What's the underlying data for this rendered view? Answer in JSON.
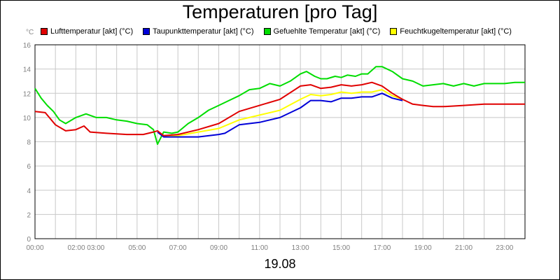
{
  "chart_data": {
    "type": "line",
    "title": "Temperaturen [pro Tag]",
    "date_label": "19.08",
    "y_unit": "°C",
    "ylim": [
      0,
      16
    ],
    "y_ticks": [
      "0",
      "2",
      "4",
      "6",
      "8",
      "10",
      "12",
      "14",
      "16"
    ],
    "xlim": [
      0,
      24
    ],
    "x_ticks": [
      {
        "h": 0,
        "label": "00:00"
      },
      {
        "h": 2.5,
        "label": "02:00 03:00"
      },
      {
        "h": 5,
        "label": "05:00"
      },
      {
        "h": 7,
        "label": "07:00"
      },
      {
        "h": 9,
        "label": "09:00"
      },
      {
        "h": 11,
        "label": "11:00"
      },
      {
        "h": 13,
        "label": "13:00"
      },
      {
        "h": 15,
        "label": "15:00"
      },
      {
        "h": 17,
        "label": "17:00"
      },
      {
        "h": 19,
        "label": "19:00"
      },
      {
        "h": 21,
        "label": "21:00"
      },
      {
        "h": 23,
        "label": "23:00"
      }
    ],
    "grid": true,
    "legend_position": "top",
    "series": [
      {
        "name": "Lufttemperatur [akt] (°C)",
        "color": "#e00000",
        "points": [
          [
            0,
            10.5
          ],
          [
            0.5,
            10.4
          ],
          [
            1,
            9.4
          ],
          [
            1.5,
            8.9
          ],
          [
            2,
            9.0
          ],
          [
            2.4,
            9.3
          ],
          [
            2.7,
            8.8
          ],
          [
            3.5,
            8.7
          ],
          [
            4.5,
            8.6
          ],
          [
            5.3,
            8.6
          ],
          [
            5.8,
            8.8
          ],
          [
            6,
            8.9
          ],
          [
            6.3,
            8.5
          ],
          [
            7,
            8.6
          ],
          [
            8,
            9.0
          ],
          [
            9,
            9.5
          ],
          [
            10,
            10.5
          ],
          [
            11,
            11.0
          ],
          [
            12,
            11.5
          ],
          [
            13,
            12.6
          ],
          [
            13.5,
            12.7
          ],
          [
            14,
            12.4
          ],
          [
            14.5,
            12.5
          ],
          [
            15,
            12.7
          ],
          [
            15.5,
            12.6
          ],
          [
            16,
            12.7
          ],
          [
            16.5,
            12.9
          ],
          [
            17,
            12.6
          ],
          [
            17.5,
            12.0
          ],
          [
            18,
            11.5
          ],
          [
            18.5,
            11.1
          ],
          [
            19,
            11.0
          ],
          [
            19.5,
            10.9
          ],
          [
            20,
            10.9
          ],
          [
            21,
            11.0
          ],
          [
            22,
            11.1
          ],
          [
            23,
            11.1
          ],
          [
            24,
            11.1
          ]
        ]
      },
      {
        "name": "Taupunkttemperatur [akt] (°C)",
        "color": "#0000d8",
        "points": [
          [
            6,
            8.8
          ],
          [
            6.3,
            8.4
          ],
          [
            7,
            8.4
          ],
          [
            8,
            8.4
          ],
          [
            9,
            8.6
          ],
          [
            9.3,
            8.7
          ],
          [
            10,
            9.4
          ],
          [
            11,
            9.6
          ],
          [
            12,
            10.0
          ],
          [
            13,
            10.8
          ],
          [
            13.5,
            11.4
          ],
          [
            14,
            11.4
          ],
          [
            14.5,
            11.3
          ],
          [
            15,
            11.6
          ],
          [
            15.5,
            11.6
          ],
          [
            16,
            11.7
          ],
          [
            16.5,
            11.7
          ],
          [
            17,
            12.0
          ],
          [
            17.5,
            11.6
          ],
          [
            18,
            11.4
          ]
        ]
      },
      {
        "name": "Gefuehlte Temperatur [akt] (°C)",
        "color": "#00dd00",
        "points": [
          [
            0,
            12.4
          ],
          [
            0.3,
            11.6
          ],
          [
            0.6,
            11.0
          ],
          [
            0.9,
            10.5
          ],
          [
            1.2,
            9.8
          ],
          [
            1.5,
            9.5
          ],
          [
            2,
            10.0
          ],
          [
            2.5,
            10.3
          ],
          [
            3,
            10.0
          ],
          [
            3.5,
            10.0
          ],
          [
            4,
            9.8
          ],
          [
            4.5,
            9.7
          ],
          [
            5,
            9.5
          ],
          [
            5.5,
            9.4
          ],
          [
            5.8,
            9.0
          ],
          [
            6,
            7.8
          ],
          [
            6.3,
            8.8
          ],
          [
            6.7,
            8.7
          ],
          [
            7,
            8.8
          ],
          [
            7.5,
            9.5
          ],
          [
            8,
            10.0
          ],
          [
            8.5,
            10.6
          ],
          [
            9,
            11.0
          ],
          [
            9.5,
            11.4
          ],
          [
            10,
            11.8
          ],
          [
            10.5,
            12.3
          ],
          [
            11,
            12.4
          ],
          [
            11.5,
            12.8
          ],
          [
            12,
            12.6
          ],
          [
            12.5,
            13.0
          ],
          [
            13,
            13.6
          ],
          [
            13.3,
            13.8
          ],
          [
            13.7,
            13.4
          ],
          [
            14,
            13.2
          ],
          [
            14.3,
            13.2
          ],
          [
            14.7,
            13.4
          ],
          [
            15,
            13.3
          ],
          [
            15.3,
            13.5
          ],
          [
            15.7,
            13.4
          ],
          [
            16,
            13.6
          ],
          [
            16.3,
            13.6
          ],
          [
            16.7,
            14.2
          ],
          [
            17,
            14.2
          ],
          [
            17.5,
            13.8
          ],
          [
            18,
            13.2
          ],
          [
            18.5,
            13.0
          ],
          [
            19,
            12.6
          ],
          [
            19.5,
            12.7
          ],
          [
            20,
            12.8
          ],
          [
            20.5,
            12.6
          ],
          [
            21,
            12.8
          ],
          [
            21.5,
            12.6
          ],
          [
            22,
            12.8
          ],
          [
            23,
            12.8
          ],
          [
            23.5,
            12.9
          ],
          [
            24,
            12.9
          ]
        ]
      },
      {
        "name": "Feuchtkugeltemperatur [akt] (°C)",
        "color": "#ffff00",
        "points": [
          [
            6,
            8.8
          ],
          [
            6.3,
            8.5
          ],
          [
            7,
            8.5
          ],
          [
            8,
            8.8
          ],
          [
            9,
            9.1
          ],
          [
            10,
            9.8
          ],
          [
            11,
            10.2
          ],
          [
            12,
            10.6
          ],
          [
            13,
            11.5
          ],
          [
            13.5,
            11.9
          ],
          [
            14,
            11.8
          ],
          [
            14.5,
            11.9
          ],
          [
            15,
            12.1
          ],
          [
            15.5,
            12.0
          ],
          [
            16,
            12.1
          ],
          [
            16.5,
            12.1
          ],
          [
            17,
            12.3
          ],
          [
            17.5,
            11.8
          ],
          [
            18,
            11.5
          ]
        ]
      }
    ]
  }
}
